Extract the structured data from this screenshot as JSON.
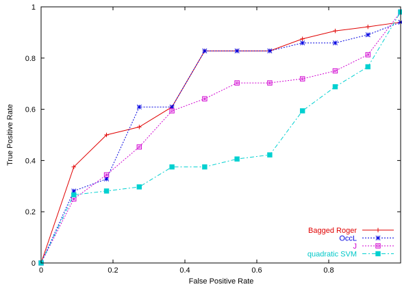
{
  "chart_data": {
    "type": "line",
    "title": "",
    "xlabel": "False Positive Rate",
    "ylabel": "True Positive Rate",
    "xlim": [
      0,
      1
    ],
    "ylim": [
      0,
      1
    ],
    "x_ticks": [
      "0",
      "0.2",
      "0.4",
      "0.6",
      "0.8"
    ],
    "y_ticks": [
      "0",
      "0.2",
      "0.4",
      "0.6",
      "0.8",
      "1"
    ],
    "x_tick_values": [
      0,
      0.2,
      0.4,
      0.6,
      0.8
    ],
    "y_tick_values": [
      0,
      0.2,
      0.4,
      0.6,
      0.8,
      1
    ],
    "grid": false,
    "legend_position": "bottom-right",
    "series": [
      {
        "name": "Bagged Roger",
        "color": "#e00000",
        "marker": "plus",
        "dash": "solid",
        "text_color": "#e00000",
        "points": [
          [
            0,
            0
          ],
          [
            0.091,
            0.375
          ],
          [
            0.182,
            0.5
          ],
          [
            0.273,
            0.531
          ],
          [
            0.364,
            0.609
          ],
          [
            0.455,
            0.828
          ],
          [
            0.545,
            0.828
          ],
          [
            0.636,
            0.828
          ],
          [
            0.727,
            0.875
          ],
          [
            0.818,
            0.906
          ],
          [
            0.909,
            0.922
          ],
          [
            1,
            0.94
          ]
        ]
      },
      {
        "name": "OccL",
        "color": "#0000e0",
        "marker": "star",
        "dash": "dotted",
        "text_color": "#0000e0",
        "points": [
          [
            0,
            0
          ],
          [
            0.091,
            0.281
          ],
          [
            0.182,
            0.328
          ],
          [
            0.273,
            0.609
          ],
          [
            0.364,
            0.609
          ],
          [
            0.455,
            0.828
          ],
          [
            0.545,
            0.828
          ],
          [
            0.636,
            0.828
          ],
          [
            0.727,
            0.859
          ],
          [
            0.818,
            0.859
          ],
          [
            0.909,
            0.891
          ],
          [
            1,
            0.94
          ]
        ]
      },
      {
        "name": "J",
        "color": "#d000d0",
        "marker": "square-open",
        "dash": "dotted",
        "text_color": "#d000d0",
        "points": [
          [
            0,
            0
          ],
          [
            0.091,
            0.25
          ],
          [
            0.182,
            0.344
          ],
          [
            0.273,
            0.453
          ],
          [
            0.364,
            0.594
          ],
          [
            0.455,
            0.641
          ],
          [
            0.545,
            0.703
          ],
          [
            0.636,
            0.703
          ],
          [
            0.727,
            0.719
          ],
          [
            0.818,
            0.75
          ],
          [
            0.909,
            0.813
          ],
          [
            1,
            0.98
          ]
        ]
      },
      {
        "name": "quadratic SVM",
        "color": "#00d0d0",
        "marker": "square-filled",
        "dash": "dashdot",
        "text_color": "#00c8c8",
        "points": [
          [
            0,
            0
          ],
          [
            0.091,
            0.266
          ],
          [
            0.182,
            0.281
          ],
          [
            0.273,
            0.297
          ],
          [
            0.364,
            0.375
          ],
          [
            0.455,
            0.375
          ],
          [
            0.545,
            0.406
          ],
          [
            0.636,
            0.422
          ],
          [
            0.727,
            0.594
          ],
          [
            0.818,
            0.688
          ],
          [
            0.909,
            0.766
          ],
          [
            1,
            0.98
          ]
        ]
      }
    ]
  }
}
